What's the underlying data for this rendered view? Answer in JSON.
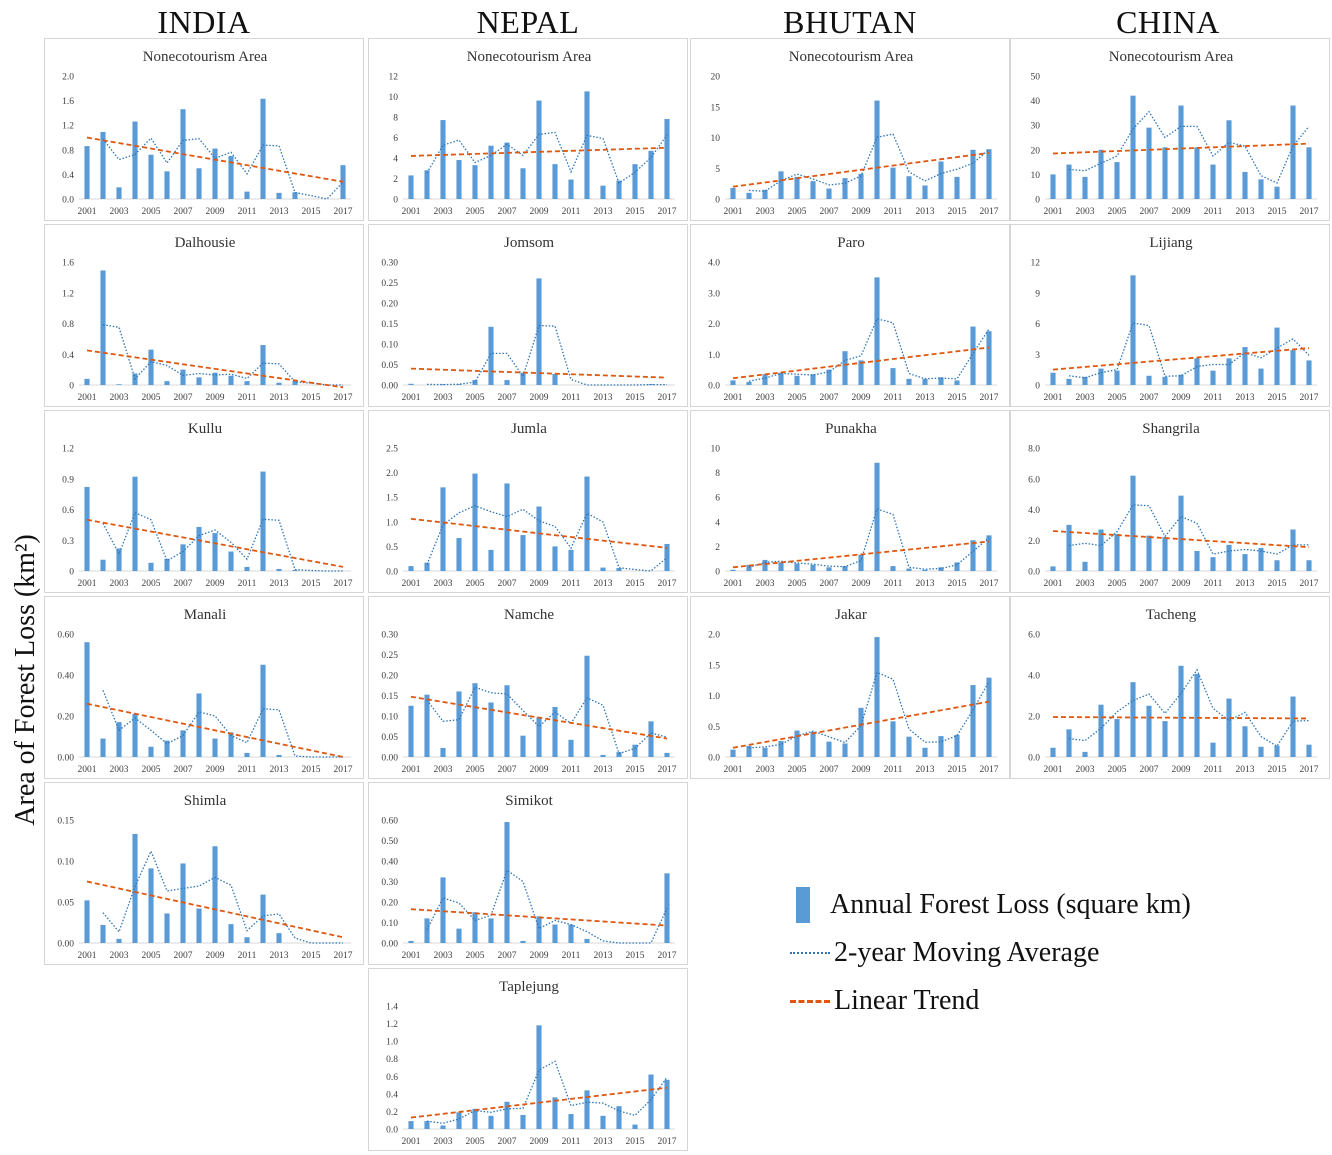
{
  "countries": [
    "INDIA",
    "NEPAL",
    "BHUTAN",
    "CHINA"
  ],
  "y_axis_label": "Area of Forest Loss (km²)",
  "legend": {
    "bar": "Annual Forest Loss (square km)",
    "moving_avg": "2-year Moving Average",
    "trend": "Linear Trend"
  },
  "colors": {
    "bar": "#5b9bd5",
    "moving_avg": "#2e75b6",
    "trend": "#e0580f",
    "axis": "#d9d9d9",
    "tick_text": "#404040"
  },
  "x_tick_labels": [
    "2001",
    "2003",
    "2005",
    "2007",
    "2009",
    "2011",
    "2013",
    "2015",
    "2017"
  ],
  "chart_data": [
    {
      "type": "bar",
      "country": "INDIA",
      "title": "Nonecotourism Area",
      "x": [
        2001,
        2002,
        2003,
        2004,
        2005,
        2006,
        2007,
        2008,
        2009,
        2010,
        2011,
        2012,
        2013,
        2014,
        2015,
        2016,
        2017
      ],
      "values": [
        0.86,
        1.09,
        0.19,
        1.26,
        0.72,
        0.45,
        1.46,
        0.5,
        0.82,
        0.7,
        0.12,
        1.63,
        0.1,
        0.11,
        0.0,
        0.0,
        0.55
      ],
      "yticks": [
        "0.0",
        "0.4",
        "0.8",
        "1.2",
        "1.6",
        "2.0"
      ],
      "ylim": [
        0,
        2.0
      ],
      "trend": [
        1.0,
        0.28
      ]
    },
    {
      "type": "bar",
      "country": "INDIA",
      "title": "Dalhousie",
      "x": [
        2001,
        2002,
        2003,
        2004,
        2005,
        2006,
        2007,
        2008,
        2009,
        2010,
        2011,
        2012,
        2013,
        2014,
        2015,
        2016,
        2017
      ],
      "values": [
        0.08,
        1.49,
        0.01,
        0.15,
        0.46,
        0.05,
        0.2,
        0.1,
        0.16,
        0.12,
        0.05,
        0.52,
        0.03,
        0.05,
        0.0,
        0.0,
        0.0
      ],
      "yticks": [
        "0",
        "0.4",
        "0.8",
        "1.2",
        "1.6"
      ],
      "ylim": [
        0,
        1.6
      ],
      "trend": [
        0.45,
        -0.03
      ]
    },
    {
      "type": "bar",
      "country": "INDIA",
      "title": "Kullu",
      "x": [
        2001,
        2002,
        2003,
        2004,
        2005,
        2006,
        2007,
        2008,
        2009,
        2010,
        2011,
        2012,
        2013,
        2014,
        2015,
        2016,
        2017
      ],
      "values": [
        0.82,
        0.11,
        0.22,
        0.92,
        0.08,
        0.12,
        0.26,
        0.43,
        0.37,
        0.19,
        0.04,
        0.97,
        0.02,
        0.01,
        0.0,
        0.0,
        0.0
      ],
      "yticks": [
        "0",
        "0.3",
        "0.6",
        "0.9",
        "1.2"
      ],
      "ylim": [
        0,
        1.2
      ],
      "trend": [
        0.5,
        0.04
      ]
    },
    {
      "type": "bar",
      "country": "INDIA",
      "title": "Manali",
      "x": [
        2001,
        2002,
        2003,
        2004,
        2005,
        2006,
        2007,
        2008,
        2009,
        2010,
        2011,
        2012,
        2013,
        2014,
        2015,
        2016,
        2017
      ],
      "values": [
        0.56,
        0.09,
        0.17,
        0.21,
        0.05,
        0.08,
        0.13,
        0.31,
        0.09,
        0.12,
        0.02,
        0.45,
        0.01,
        0.0,
        0.0,
        0.0,
        0.0
      ],
      "yticks": [
        "0.00",
        "0.20",
        "0.40",
        "0.60"
      ],
      "ylim": [
        0,
        0.6
      ],
      "trend": [
        0.26,
        0.0
      ]
    },
    {
      "type": "bar",
      "country": "INDIA",
      "title": "Shimla",
      "x": [
        2001,
        2002,
        2003,
        2004,
        2005,
        2006,
        2007,
        2008,
        2009,
        2010,
        2011,
        2012,
        2013,
        2014,
        2015,
        2016,
        2017
      ],
      "values": [
        0.052,
        0.022,
        0.005,
        0.133,
        0.091,
        0.036,
        0.097,
        0.042,
        0.118,
        0.023,
        0.007,
        0.059,
        0.012,
        0.0,
        0.0,
        0.0,
        0.0
      ],
      "yticks": [
        "0.00",
        "0.05",
        "0.10",
        "0.15"
      ],
      "ylim": [
        0,
        0.15
      ],
      "trend": [
        0.075,
        0.007
      ]
    },
    {
      "type": "bar",
      "country": "NEPAL",
      "title": "Nonecotourism Area",
      "x": [
        2001,
        2002,
        2003,
        2004,
        2005,
        2006,
        2007,
        2008,
        2009,
        2010,
        2011,
        2012,
        2013,
        2014,
        2015,
        2016,
        2017
      ],
      "values": [
        2.3,
        2.8,
        7.7,
        3.8,
        3.3,
        5.2,
        5.5,
        3.0,
        9.6,
        3.4,
        1.9,
        10.5,
        1.3,
        1.8,
        3.4,
        4.7,
        7.8
      ],
      "yticks": [
        "0",
        "2",
        "4",
        "6",
        "8",
        "10",
        "12"
      ],
      "ylim": [
        0,
        12
      ],
      "trend": [
        4.2,
        5.0
      ]
    },
    {
      "type": "bar",
      "country": "NEPAL",
      "title": "Jomsom",
      "x": [
        2001,
        2002,
        2003,
        2004,
        2005,
        2006,
        2007,
        2008,
        2009,
        2010,
        2011,
        2012,
        2013,
        2014,
        2015,
        2016,
        2017
      ],
      "values": [
        0.003,
        0.0,
        0.002,
        0.002,
        0.012,
        0.142,
        0.012,
        0.03,
        0.26,
        0.027,
        0.0,
        0.0,
        0.0,
        0.0,
        0.0,
        0.002,
        0.0
      ],
      "yticks": [
        "0.00",
        "0.05",
        "0.10",
        "0.15",
        "0.20",
        "0.25",
        "0.30"
      ],
      "ylim": [
        0,
        0.3
      ],
      "trend": [
        0.04,
        0.018
      ]
    },
    {
      "type": "bar",
      "country": "NEPAL",
      "title": "Jumla",
      "x": [
        2001,
        2002,
        2003,
        2004,
        2005,
        2006,
        2007,
        2008,
        2009,
        2010,
        2011,
        2012,
        2013,
        2014,
        2015,
        2016,
        2017
      ],
      "values": [
        0.1,
        0.17,
        1.7,
        0.67,
        1.98,
        0.43,
        1.78,
        0.73,
        1.31,
        0.5,
        0.43,
        1.92,
        0.07,
        0.06,
        0.0,
        0.0,
        0.55
      ],
      "yticks": [
        "0.0",
        "0.5",
        "1.0",
        "1.5",
        "2.0",
        "2.5"
      ],
      "ylim": [
        0,
        2.5
      ],
      "trend": [
        1.06,
        0.47
      ]
    },
    {
      "type": "bar",
      "country": "NEPAL",
      "title": "Namche",
      "x": [
        2001,
        2002,
        2003,
        2004,
        2005,
        2006,
        2007,
        2008,
        2009,
        2010,
        2011,
        2012,
        2013,
        2014,
        2015,
        2016,
        2017
      ],
      "values": [
        0.125,
        0.152,
        0.022,
        0.16,
        0.18,
        0.133,
        0.175,
        0.052,
        0.097,
        0.122,
        0.042,
        0.247,
        0.005,
        0.012,
        0.03,
        0.087,
        0.01
      ],
      "yticks": [
        "0.00",
        "0.05",
        "0.10",
        "0.15",
        "0.20",
        "0.25",
        "0.30"
      ],
      "ylim": [
        0,
        0.3
      ],
      "trend": [
        0.147,
        0.045
      ]
    },
    {
      "type": "bar",
      "country": "NEPAL",
      "title": "Simikot",
      "x": [
        2001,
        2002,
        2003,
        2004,
        2005,
        2006,
        2007,
        2008,
        2009,
        2010,
        2011,
        2012,
        2013,
        2014,
        2015,
        2016,
        2017
      ],
      "values": [
        0.01,
        0.12,
        0.32,
        0.07,
        0.15,
        0.12,
        0.59,
        0.01,
        0.13,
        0.09,
        0.09,
        0.02,
        0.0,
        0.0,
        0.0,
        0.0,
        0.34
      ],
      "yticks": [
        "0.00",
        "0.10",
        "0.20",
        "0.30",
        "0.40",
        "0.50",
        "0.60"
      ],
      "ylim": [
        0,
        0.6
      ],
      "trend": [
        0.165,
        0.085
      ]
    },
    {
      "type": "bar",
      "country": "NEPAL",
      "title": "Taplejung",
      "x": [
        2001,
        2002,
        2003,
        2004,
        2005,
        2006,
        2007,
        2008,
        2009,
        2010,
        2011,
        2012,
        2013,
        2014,
        2015,
        2016,
        2017
      ],
      "values": [
        0.09,
        0.09,
        0.04,
        0.19,
        0.23,
        0.15,
        0.31,
        0.16,
        1.18,
        0.36,
        0.17,
        0.44,
        0.15,
        0.26,
        0.05,
        0.62,
        0.56
      ],
      "yticks": [
        "0.0",
        "0.2",
        "0.4",
        "0.6",
        "0.8",
        "1.0",
        "1.2",
        "1.4"
      ],
      "ylim": [
        0,
        1.4
      ],
      "trend": [
        0.13,
        0.47
      ]
    },
    {
      "type": "bar",
      "country": "BHUTAN",
      "title": "Nonecotourism Area",
      "x": [
        2001,
        2002,
        2003,
        2004,
        2005,
        2006,
        2007,
        2008,
        2009,
        2010,
        2011,
        2012,
        2013,
        2014,
        2015,
        2016,
        2017
      ],
      "values": [
        1.8,
        1.0,
        1.5,
        4.5,
        3.6,
        2.9,
        1.7,
        3.4,
        4.1,
        16.0,
        5.1,
        3.7,
        2.2,
        6.1,
        3.6,
        8.0,
        8.1
      ],
      "yticks": [
        "0",
        "5",
        "10",
        "15",
        "20"
      ],
      "ylim": [
        0,
        20
      ],
      "trend": [
        2.0,
        7.5
      ]
    },
    {
      "type": "bar",
      "country": "BHUTAN",
      "title": "Paro",
      "x": [
        2001,
        2002,
        2003,
        2004,
        2005,
        2006,
        2007,
        2008,
        2009,
        2010,
        2011,
        2012,
        2013,
        2014,
        2015,
        2016,
        2017
      ],
      "values": [
        0.15,
        0.1,
        0.35,
        0.4,
        0.3,
        0.35,
        0.5,
        1.1,
        0.8,
        3.5,
        0.55,
        0.2,
        0.2,
        0.25,
        0.15,
        1.9,
        1.75
      ],
      "yticks": [
        "0.0",
        "1.0",
        "2.0",
        "3.0",
        "4.0"
      ],
      "ylim": [
        0,
        4.0
      ],
      "trend": [
        0.22,
        1.22
      ]
    },
    {
      "type": "bar",
      "country": "BHUTAN",
      "title": "Punakha",
      "x": [
        2001,
        2002,
        2003,
        2004,
        2005,
        2006,
        2007,
        2008,
        2009,
        2010,
        2011,
        2012,
        2013,
        2014,
        2015,
        2016,
        2017
      ],
      "values": [
        0.1,
        0.5,
        0.9,
        0.7,
        0.6,
        0.5,
        0.3,
        0.4,
        1.3,
        8.8,
        0.4,
        0.2,
        0.1,
        0.3,
        0.7,
        2.5,
        2.9
      ],
      "yticks": [
        "0",
        "2",
        "4",
        "6",
        "8",
        "10"
      ],
      "ylim": [
        0,
        10
      ],
      "trend": [
        0.3,
        2.4
      ]
    },
    {
      "type": "bar",
      "country": "BHUTAN",
      "title": "Jakar",
      "x": [
        2001,
        2002,
        2003,
        2004,
        2005,
        2006,
        2007,
        2008,
        2009,
        2010,
        2011,
        2012,
        2013,
        2014,
        2015,
        2016,
        2017
      ],
      "values": [
        0.12,
        0.18,
        0.15,
        0.26,
        0.43,
        0.41,
        0.25,
        0.22,
        0.8,
        1.95,
        0.58,
        0.33,
        0.15,
        0.34,
        0.36,
        1.17,
        1.29
      ],
      "yticks": [
        "0.0",
        "0.5",
        "1.0",
        "1.5",
        "2.0"
      ],
      "ylim": [
        0,
        2.0
      ],
      "trend": [
        0.15,
        0.9
      ]
    },
    {
      "type": "bar",
      "country": "CHINA",
      "title": "Nonecotourism Area",
      "x": [
        2001,
        2002,
        2003,
        2004,
        2005,
        2006,
        2007,
        2008,
        2009,
        2010,
        2011,
        2012,
        2013,
        2014,
        2015,
        2016,
        2017
      ],
      "values": [
        10,
        14,
        9,
        20,
        15,
        42,
        29,
        21,
        38,
        21,
        14,
        32,
        11,
        8,
        5,
        38,
        21
      ],
      "yticks": [
        "0",
        "10",
        "20",
        "30",
        "40",
        "50"
      ],
      "ylim": [
        0,
        50
      ],
      "trend": [
        18.5,
        22.5
      ]
    },
    {
      "type": "bar",
      "country": "CHINA",
      "title": "Lijiang",
      "x": [
        2001,
        2002,
        2003,
        2004,
        2005,
        2006,
        2007,
        2008,
        2009,
        2010,
        2011,
        2012,
        2013,
        2014,
        2015,
        2016,
        2017
      ],
      "values": [
        1.2,
        0.6,
        0.8,
        1.6,
        1.4,
        10.7,
        0.9,
        0.8,
        1.0,
        2.6,
        1.4,
        2.6,
        3.7,
        1.6,
        5.6,
        3.4,
        2.4
      ],
      "yticks": [
        "0",
        "3",
        "6",
        "9",
        "12"
      ],
      "ylim": [
        0,
        12
      ],
      "trend": [
        1.5,
        3.6
      ]
    },
    {
      "type": "bar",
      "country": "CHINA",
      "title": "Shangrila",
      "x": [
        2001,
        2002,
        2003,
        2004,
        2005,
        2006,
        2007,
        2008,
        2009,
        2010,
        2011,
        2012,
        2013,
        2014,
        2015,
        2016,
        2017
      ],
      "values": [
        0.3,
        3.0,
        0.6,
        2.7,
        2.4,
        6.2,
        2.3,
        2.2,
        4.9,
        1.3,
        0.9,
        1.7,
        1.1,
        1.5,
        0.7,
        2.7,
        0.7
      ],
      "yticks": [
        "0.0",
        "2.0",
        "4.0",
        "6.0",
        "8.0"
      ],
      "ylim": [
        0,
        8.0
      ],
      "trend": [
        2.6,
        1.55
      ]
    },
    {
      "type": "bar",
      "country": "CHINA",
      "title": "Tacheng",
      "x": [
        2001,
        2002,
        2003,
        2004,
        2005,
        2006,
        2007,
        2008,
        2009,
        2010,
        2011,
        2012,
        2013,
        2014,
        2015,
        2016,
        2017
      ],
      "values": [
        0.45,
        1.35,
        0.25,
        2.55,
        1.85,
        3.65,
        2.5,
        1.75,
        4.45,
        4.05,
        0.7,
        2.85,
        1.5,
        0.5,
        0.55,
        2.95,
        0.6
      ],
      "yticks": [
        "0.0",
        "2.0",
        "4.0",
        "6.0"
      ],
      "ylim": [
        0,
        6.0
      ],
      "trend": [
        1.95,
        1.88
      ]
    }
  ]
}
